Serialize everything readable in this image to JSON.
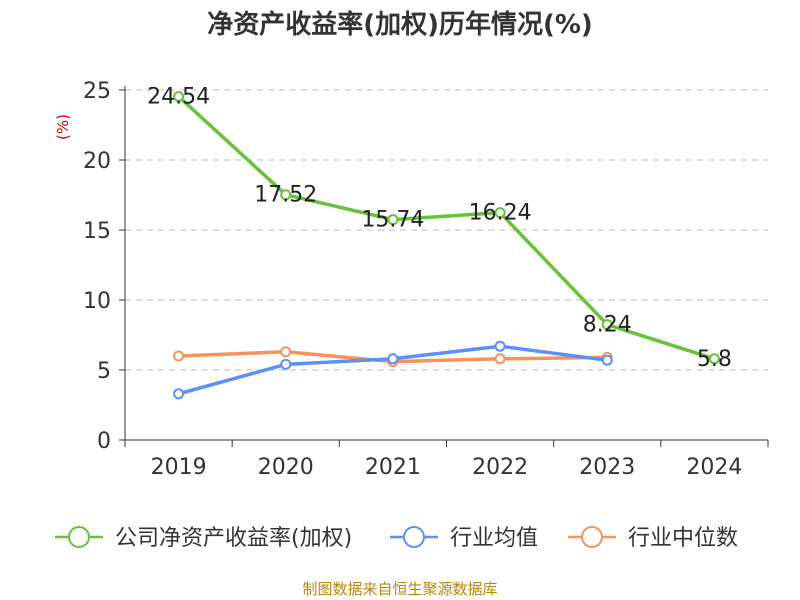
{
  "chart_data": {
    "type": "line",
    "title": "净资产收益率(加权)历年情况(%)",
    "ylabel": "(%)",
    "xlabel": "",
    "categories": [
      "2019",
      "2020",
      "2021",
      "2022",
      "2023",
      "2024"
    ],
    "ylim": [
      0,
      25
    ],
    "yticks": [
      0,
      5,
      10,
      15,
      20,
      25
    ],
    "grid": true,
    "legend_position": "bottom",
    "series": [
      {
        "name": "公司净资产收益率(加权)",
        "color": "#67c23a",
        "values": [
          24.54,
          17.52,
          15.74,
          16.24,
          8.24,
          5.8
        ],
        "labels": [
          "24.54",
          "17.52",
          "15.74",
          "16.24",
          "8.24",
          "5.8"
        ],
        "show_labels": true
      },
      {
        "name": "行业均值",
        "color": "#5b8ff9",
        "values": [
          3.3,
          5.4,
          5.8,
          6.7,
          5.7,
          null
        ],
        "show_labels": false
      },
      {
        "name": "行业中位数",
        "color": "#f7925a",
        "values": [
          6.0,
          6.3,
          5.6,
          5.8,
          5.9,
          null
        ],
        "show_labels": false
      }
    ]
  },
  "source": "制图数据来自恒生聚源数据库",
  "colors": {
    "axis": "#333333",
    "grid": "#bbbbbb",
    "ylabel": "#cc0000",
    "source": "#b8860b"
  }
}
